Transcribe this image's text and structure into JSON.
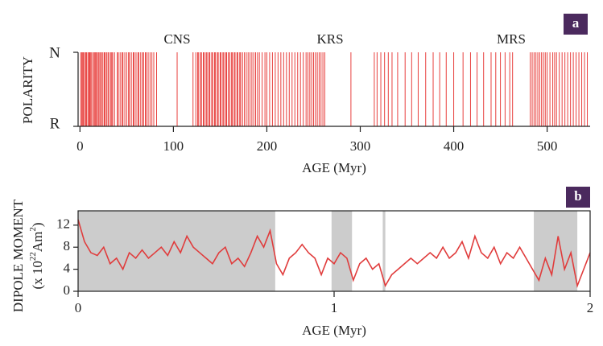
{
  "chart_data": [
    {
      "type": "stripe",
      "panel_label": "a",
      "ylabel": "POLARITY",
      "ylabels": [
        "N",
        "R"
      ],
      "annotations": [
        "CNS",
        "KRS",
        "MRS"
      ],
      "xlabel": "AGE (Myr)",
      "color": "#e8403e",
      "xlim": [
        -2,
        546
      ],
      "xticks": [
        0,
        100,
        200,
        300,
        400,
        500
      ],
      "reversals": [
        0.8,
        2,
        2.6,
        3.6,
        5,
        6,
        7,
        8.5,
        9.5,
        10.5,
        11,
        12,
        13.5,
        15,
        16,
        17,
        18,
        19.5,
        20.5,
        22,
        23,
        24.5,
        26,
        27,
        28.5,
        30,
        31,
        33,
        34,
        35,
        37,
        40,
        41,
        43,
        45,
        46,
        48,
        50,
        52,
        53,
        55,
        57,
        58,
        60,
        62,
        63,
        65,
        67,
        68,
        70,
        71,
        73,
        75,
        77,
        79,
        82,
        104,
        121,
        124,
        126,
        127,
        129,
        130,
        132,
        133,
        135,
        136,
        138,
        139,
        141,
        142,
        144,
        145,
        147,
        148,
        150,
        151,
        153,
        154,
        156,
        157,
        159,
        160,
        162,
        163,
        165,
        166,
        168,
        169,
        171,
        172,
        174,
        176,
        178,
        180,
        182,
        184,
        186,
        188,
        190,
        192,
        195,
        198,
        200,
        203,
        206,
        209,
        212,
        215,
        218,
        221,
        224,
        227,
        230,
        233,
        236,
        239,
        242,
        244,
        246,
        248,
        250,
        252,
        254,
        256,
        258,
        260,
        262,
        290,
        315,
        318,
        322,
        326,
        330,
        334,
        340,
        348,
        355,
        362,
        370,
        378,
        385,
        392,
        400,
        410,
        418,
        425,
        432,
        440,
        445,
        450,
        455,
        460,
        463,
        482,
        484,
        486,
        488,
        490,
        492,
        494,
        496,
        498,
        500,
        503,
        506,
        508,
        510,
        513,
        516,
        519,
        522,
        525,
        528,
        531,
        534,
        537,
        540,
        543
      ]
    },
    {
      "type": "line",
      "panel_label": "b",
      "ylabel": "DIPOLE MOMENT",
      "ylabel_units": [
        "(x 10",
        "22",
        "Am",
        "2",
        ")"
      ],
      "xlabel": "AGE (Myr)",
      "xlim": [
        0,
        2
      ],
      "xticks": [
        0,
        1,
        2
      ],
      "ylim": [
        0,
        14.6
      ],
      "yticks": [
        0,
        4,
        8,
        12
      ],
      "shade_color": "#cccccc",
      "shaded": [
        [
          0,
          0.77
        ],
        [
          0.99,
          1.07
        ],
        [
          1.19,
          1.2
        ],
        [
          1.78,
          1.95
        ]
      ],
      "x": [
        0,
        0.025,
        0.05,
        0.075,
        0.1,
        0.125,
        0.15,
        0.175,
        0.2,
        0.225,
        0.25,
        0.275,
        0.3,
        0.325,
        0.35,
        0.375,
        0.4,
        0.425,
        0.45,
        0.475,
        0.5,
        0.525,
        0.55,
        0.575,
        0.6,
        0.625,
        0.65,
        0.675,
        0.7,
        0.725,
        0.75,
        0.775,
        0.8,
        0.825,
        0.85,
        0.875,
        0.9,
        0.925,
        0.95,
        0.975,
        1,
        1.025,
        1.05,
        1.075,
        1.1,
        1.125,
        1.15,
        1.175,
        1.2,
        1.225,
        1.25,
        1.275,
        1.3,
        1.325,
        1.35,
        1.375,
        1.4,
        1.425,
        1.45,
        1.475,
        1.5,
        1.525,
        1.55,
        1.575,
        1.6,
        1.625,
        1.65,
        1.675,
        1.7,
        1.725,
        1.75,
        1.775,
        1.8,
        1.825,
        1.85,
        1.875,
        1.9,
        1.925,
        1.95,
        1.975,
        2
      ],
      "series": [
        {
          "color": "#e03c3c",
          "values": [
            13,
            9,
            7,
            6.5,
            8,
            5,
            6,
            4,
            7,
            6,
            7.5,
            6,
            7,
            8,
            6.5,
            9,
            7,
            10,
            8,
            7,
            6,
            5,
            7,
            8,
            5,
            6,
            4.5,
            7,
            10,
            8,
            11,
            5,
            3,
            6,
            7,
            8.5,
            7,
            6,
            3,
            6,
            5,
            7,
            6,
            2,
            5,
            6,
            4,
            5,
            1,
            3,
            4,
            5,
            6,
            5,
            6,
            7,
            6,
            8,
            6,
            7,
            9,
            6,
            10,
            7,
            6,
            8,
            5,
            7,
            6,
            8,
            6,
            4,
            2,
            6,
            3,
            10,
            4,
            7,
            1,
            4,
            7
          ]
        }
      ]
    }
  ]
}
